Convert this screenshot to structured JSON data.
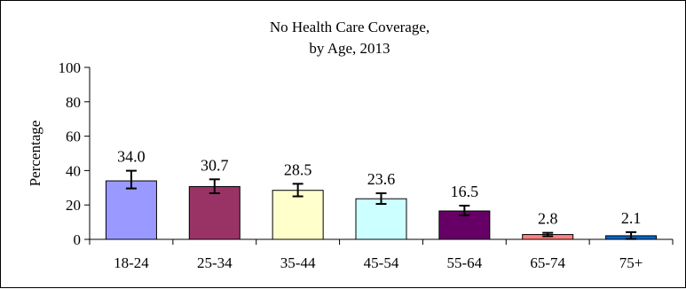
{
  "chart_data": {
    "type": "bar",
    "title": [
      "No Health Care Coverage,",
      "by Age, 2013"
    ],
    "ylabel": "Percentage",
    "xlabel": "",
    "ylim": [
      0,
      100
    ],
    "yticks": [
      0,
      20,
      40,
      60,
      80,
      100
    ],
    "categories": [
      "18-24",
      "25-34",
      "35-44",
      "45-54",
      "55-64",
      "65-74",
      "75+"
    ],
    "values": [
      34.0,
      30.7,
      28.5,
      23.6,
      16.5,
      2.8,
      2.1
    ],
    "value_labels": [
      "34.0",
      "30.7",
      "28.5",
      "23.6",
      "16.5",
      "2.8",
      "2.1"
    ],
    "error_low": [
      29.6,
      26.8,
      25.0,
      20.6,
      14.0,
      1.8,
      0.2
    ],
    "error_high": [
      39.9,
      34.9,
      32.3,
      26.8,
      19.6,
      3.8,
      4.2
    ],
    "colors": [
      "#9999ff",
      "#993366",
      "#ffffcc",
      "#ccffff",
      "#660066",
      "#ff8080",
      "#0066cc"
    ],
    "grid": false,
    "legend": "none"
  }
}
